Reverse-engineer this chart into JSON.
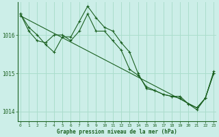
{
  "title": "Graphe pression niveau de la mer (hPa)",
  "bg_color": "#cceee8",
  "grid_color": "#aaddcc",
  "line_color": "#1a6020",
  "xlim": [
    -0.3,
    23.3
  ],
  "ylim": [
    1013.75,
    1016.85
  ],
  "yticks": [
    1014,
    1015,
    1016
  ],
  "xticks": [
    0,
    1,
    2,
    3,
    4,
    5,
    6,
    7,
    8,
    9,
    10,
    11,
    12,
    13,
    14,
    15,
    16,
    17,
    18,
    19,
    20,
    21,
    22,
    23
  ],
  "series1_x": [
    0,
    1,
    2,
    3,
    4,
    5,
    6,
    7,
    8,
    9,
    10,
    11,
    12,
    13,
    14,
    15,
    16,
    17,
    18,
    19,
    20,
    21,
    22,
    23
  ],
  "series1_y": [
    1016.55,
    1016.2,
    1016.0,
    1015.75,
    1015.55,
    1015.95,
    1015.95,
    1016.35,
    1016.75,
    1016.45,
    1016.2,
    1016.1,
    1015.8,
    1015.55,
    1015.0,
    1014.6,
    1014.55,
    1014.45,
    1014.4,
    1014.4,
    1014.2,
    1014.1,
    1014.35,
    1015.0
  ],
  "series2_x": [
    0,
    1,
    2,
    3,
    4,
    5,
    6,
    7,
    8,
    9,
    10,
    11,
    12,
    13,
    14,
    15,
    16,
    17,
    18,
    19,
    20,
    21,
    22,
    23
  ],
  "series2_y": [
    1016.55,
    1016.1,
    1015.85,
    1015.8,
    1016.0,
    1016.0,
    1015.85,
    1016.1,
    1016.55,
    1016.1,
    1016.1,
    1015.85,
    1015.6,
    1015.1,
    1014.95,
    1014.65,
    1014.55,
    1014.45,
    1014.4,
    1014.35,
    1014.2,
    1014.05,
    1014.35,
    1015.05
  ],
  "series3_x": [
    0,
    21,
    22,
    23
  ],
  "series3_y": [
    1016.5,
    1014.1,
    1014.35,
    1015.0
  ]
}
